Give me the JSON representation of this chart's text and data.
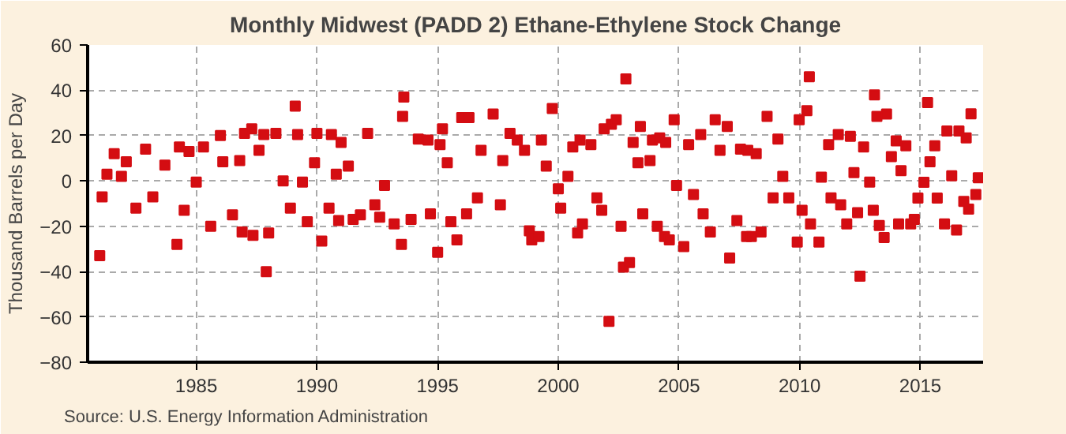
{
  "chart_data": {
    "type": "scatter",
    "title": "Monthly Midwest (PADD 2) Ethane-Ethylene Stock Change",
    "ylabel": "Thousand Barrels per Day",
    "annotations": [
      "Source: U.S. Energy Information Administration"
    ],
    "xlim": [
      1980.5,
      2017.6
    ],
    "xticks": [
      1985,
      1990,
      1995,
      2000,
      2005,
      2010,
      2015
    ],
    "ylim": [
      -80,
      60
    ],
    "yticks": [
      -80,
      -60,
      -40,
      -20,
      0,
      20,
      40,
      60
    ],
    "grid": true,
    "marker": "square",
    "series": [
      {
        "color": "#d40d12",
        "x": [
          1981.0,
          1981.1,
          1981.3,
          1981.6,
          1981.9,
          1982.1,
          1982.5,
          1982.9,
          1983.2,
          1983.7,
          1984.2,
          1984.3,
          1984.5,
          1984.7,
          1985.0,
          1985.3,
          1985.6,
          1986.0,
          1986.1,
          1986.5,
          1986.8,
          1986.9,
          1987.0,
          1987.3,
          1987.35,
          1987.6,
          1987.8,
          1987.9,
          1988.0,
          1988.3,
          1988.6,
          1988.9,
          1989.1,
          1989.2,
          1989.4,
          1989.6,
          1989.9,
          1990.0,
          1990.2,
          1990.5,
          1990.6,
          1990.8,
          1990.9,
          1991.0,
          1991.3,
          1991.5,
          1991.8,
          1992.1,
          1992.4,
          1992.6,
          1992.8,
          1993.2,
          1993.5,
          1993.55,
          1993.6,
          1993.9,
          1994.2,
          1994.6,
          1994.7,
          1995.0,
          1995.1,
          1995.2,
          1995.4,
          1995.55,
          1995.8,
          1996.0,
          1996.2,
          1996.3,
          1996.65,
          1996.8,
          1997.3,
          1997.6,
          1997.7,
          1998.0,
          1998.3,
          1998.6,
          1998.8,
          1998.9,
          1999.2,
          1999.3,
          1999.5,
          1999.75,
          2000.0,
          2000.1,
          2000.4,
          2000.6,
          2000.8,
          2000.9,
          2001.0,
          2001.35,
          2001.6,
          2001.8,
          2001.9,
          2002.1,
          2002.2,
          2002.4,
          2002.6,
          2002.7,
          2002.8,
          2002.95,
          2003.1,
          2003.3,
          2003.4,
          2003.5,
          2003.8,
          2003.9,
          2004.1,
          2004.2,
          2004.4,
          2004.45,
          2004.6,
          2004.8,
          2004.9,
          2005.2,
          2005.4,
          2005.6,
          2005.9,
          2006.0,
          2006.3,
          2006.5,
          2006.7,
          2007.0,
          2007.1,
          2007.4,
          2007.55,
          2007.8,
          2007.85,
          2008.0,
          2008.2,
          2008.4,
          2008.65,
          2008.9,
          2009.1,
          2009.3,
          2009.55,
          2009.9,
          2009.98,
          2010.1,
          2010.3,
          2010.4,
          2010.45,
          2010.8,
          2010.9,
          2011.2,
          2011.3,
          2011.6,
          2011.7,
          2011.95,
          2012.1,
          2012.25,
          2012.4,
          2012.5,
          2012.65,
          2012.9,
          2013.05,
          2013.1,
          2013.2,
          2013.3,
          2013.5,
          2013.6,
          2013.8,
          2014.0,
          2014.1,
          2014.2,
          2014.4,
          2014.6,
          2014.75,
          2014.9,
          2015.15,
          2015.3,
          2015.4,
          2015.6,
          2015.7,
          2016.0,
          2016.1,
          2016.3,
          2016.5,
          2016.6,
          2016.8,
          2016.9,
          2017.0,
          2017.1,
          2017.3,
          2017.4
        ],
        "values": [
          -33,
          -7,
          3,
          12,
          2,
          8.5,
          -12,
          14,
          -7,
          7,
          -28,
          15,
          -13,
          13,
          -0.5,
          15,
          -20,
          20,
          8.5,
          -15,
          9,
          -22.5,
          21,
          23,
          -24,
          13.5,
          20.5,
          -40,
          -23,
          21,
          0,
          -12,
          33,
          20.5,
          -0.5,
          -18,
          8,
          21,
          -26.5,
          -12,
          20.5,
          3,
          -17.5,
          17,
          6.5,
          -17,
          -15,
          21,
          -10.5,
          -16,
          -2,
          -19,
          -28,
          28.5,
          37,
          -17,
          18.5,
          18,
          -14.5,
          -31.5,
          16,
          23,
          8,
          -18,
          -26,
          28,
          -14.5,
          28,
          -7.5,
          13.5,
          29.5,
          -10.5,
          9,
          21,
          18,
          13.5,
          -22,
          -26,
          -24.5,
          18,
          6.5,
          32,
          -3.5,
          -12,
          2,
          15,
          -23,
          18,
          -19,
          16,
          -7.5,
          -13,
          23,
          -62,
          25,
          27,
          -20,
          -38,
          45,
          -36,
          17,
          8,
          24,
          -14.5,
          9,
          18,
          -20,
          19,
          -24.5,
          17,
          -26,
          27,
          -2,
          -29,
          16,
          -6,
          20.5,
          -14.5,
          -22.5,
          27,
          13.5,
          24,
          -34,
          -17.5,
          14,
          -24.5,
          13.5,
          -24.5,
          12,
          -22.5,
          28.5,
          -7.5,
          18.5,
          2,
          -7.5,
          -27,
          27,
          -13,
          31,
          46,
          -19,
          -27,
          1.7,
          16,
          -7.5,
          20.5,
          -10.5,
          -19,
          19.7,
          3.7,
          -14,
          -42,
          15,
          -0.5,
          -13,
          38,
          28.5,
          -19.7,
          -25,
          29.5,
          10.7,
          17.7,
          -19,
          4.5,
          15.5,
          -19,
          -17,
          -7.6,
          -0.6,
          34.6,
          8.5,
          15.5,
          -7.6,
          -19,
          22,
          2.3,
          -21.7,
          22,
          -9,
          19,
          -12.4,
          29.6,
          -6,
          1.4
        ]
      }
    ]
  }
}
